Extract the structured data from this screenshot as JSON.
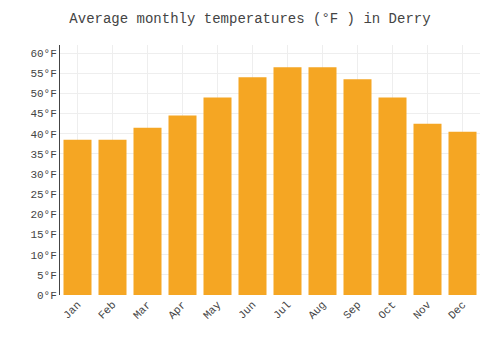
{
  "chart_data": {
    "type": "bar",
    "title": "Average monthly temperatures (°F ) in Derry",
    "categories": [
      "Jan",
      "Feb",
      "Mar",
      "Apr",
      "May",
      "Jun",
      "Jul",
      "Aug",
      "Sep",
      "Oct",
      "Nov",
      "Dec"
    ],
    "values": [
      38.5,
      38.5,
      41.5,
      44.5,
      49.0,
      54.0,
      56.5,
      56.5,
      53.5,
      49.0,
      42.5,
      40.5
    ],
    "color": "#F5A623",
    "ylim": [
      0,
      62
    ],
    "yticks": [
      {
        "value": 0,
        "label": "0°F"
      },
      {
        "value": 5,
        "label": "5°F"
      },
      {
        "value": 10,
        "label": "10°F"
      },
      {
        "value": 15,
        "label": "15°F"
      },
      {
        "value": 20,
        "label": "20°F"
      },
      {
        "value": 25,
        "label": "25°F"
      },
      {
        "value": 30,
        "label": "30°F"
      },
      {
        "value": 35,
        "label": "35°F"
      },
      {
        "value": 40,
        "label": "40°F"
      },
      {
        "value": 45,
        "label": "45°F"
      },
      {
        "value": 50,
        "label": "50°F"
      },
      {
        "value": 55,
        "label": "55°F"
      },
      {
        "value": 60,
        "label": "60°F"
      }
    ],
    "grid": true
  }
}
